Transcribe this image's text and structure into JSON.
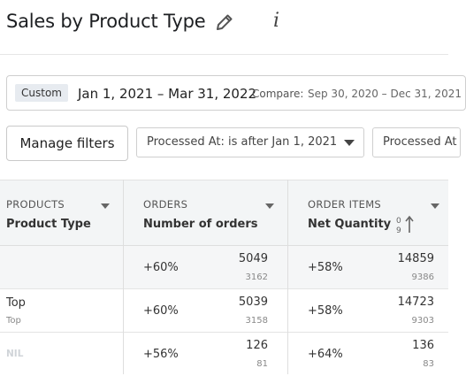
{
  "report": {
    "title": "Sales by Product Type"
  },
  "date_range": {
    "badge": "Custom",
    "range": "Jan 1, 2021 – Mar 31, 2022",
    "compare_label": "Compare:",
    "compare_range": "Sep 30, 2020 – Dec 31, 2021"
  },
  "filters": {
    "manage_label": "Manage filters",
    "chips": [
      {
        "label": "Processed At: is after Jan 1, 2021"
      },
      {
        "label": "Processed At"
      }
    ]
  },
  "table": {
    "columns": [
      {
        "category": "PRODUCTS",
        "name": "Product Type"
      },
      {
        "category": "ORDERS",
        "name": "Number of orders"
      },
      {
        "category": "ORDER ITEMS",
        "name": "Net Quantity"
      }
    ],
    "rows": [
      {
        "label": "",
        "sublabel": "",
        "orders_change": "+60%",
        "orders_value": "5049",
        "orders_previous": "3162",
        "qty_change": "+58%",
        "qty_value": "14859",
        "qty_previous": "9386"
      },
      {
        "label": "Top",
        "sublabel": "Top",
        "orders_change": "+60%",
        "orders_value": "5039",
        "orders_previous": "3158",
        "qty_change": "+58%",
        "qty_value": "14723",
        "qty_previous": "9303"
      },
      {
        "label": "NIL",
        "sublabel": "",
        "orders_change": "+56%",
        "orders_value": "126",
        "orders_previous": "81",
        "qty_change": "+64%",
        "qty_value": "136",
        "qty_previous": "83"
      }
    ]
  },
  "icons": {
    "edit": "pencil-icon",
    "info": "info-icon",
    "sort": "sort-numeric-ascending-icon"
  }
}
